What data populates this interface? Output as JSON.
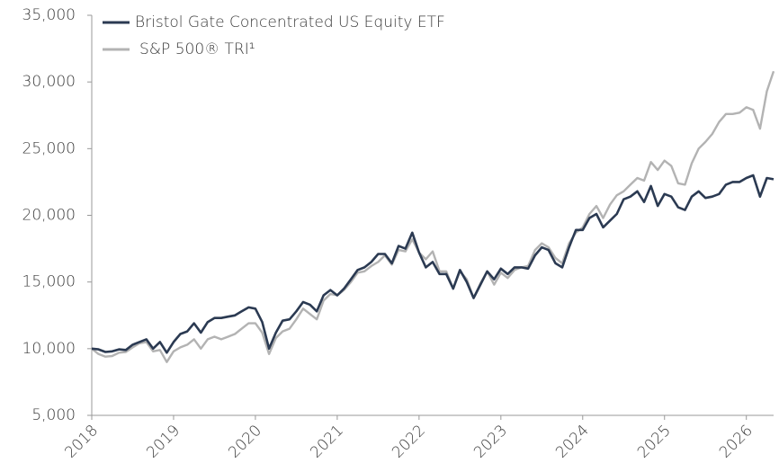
{
  "chart_data": {
    "type": "line",
    "x": [
      2018,
      2018.083,
      2018.167,
      2018.25,
      2018.333,
      2018.417,
      2018.5,
      2018.583,
      2018.667,
      2018.75,
      2018.833,
      2018.917,
      2019,
      2019.083,
      2019.167,
      2019.25,
      2019.333,
      2019.417,
      2019.5,
      2019.583,
      2019.667,
      2019.75,
      2019.833,
      2019.917,
      2020,
      2020.083,
      2020.167,
      2020.25,
      2020.333,
      2020.417,
      2020.5,
      2020.583,
      2020.667,
      2020.75,
      2020.833,
      2020.917,
      2021,
      2021.083,
      2021.167,
      2021.25,
      2021.333,
      2021.417,
      2021.5,
      2021.583,
      2021.667,
      2021.75,
      2021.833,
      2021.917,
      2022,
      2022.083,
      2022.167,
      2022.25,
      2022.333,
      2022.417,
      2022.5,
      2022.583,
      2022.667,
      2022.75,
      2022.833,
      2022.917,
      2023,
      2023.083,
      2023.167,
      2023.25,
      2023.333,
      2023.417,
      2023.5,
      2023.583,
      2023.667,
      2023.75,
      2023.833,
      2023.917,
      2024,
      2024.083,
      2024.167,
      2024.25,
      2024.333,
      2024.417,
      2024.5,
      2024.583,
      2024.667,
      2024.75,
      2024.833,
      2024.917,
      2025,
      2025.083,
      2025.167,
      2025.25,
      2025.333,
      2025.417,
      2025.5,
      2025.583,
      2025.667,
      2025.75,
      2025.833,
      2025.917,
      2026,
      2026.083,
      2026.167,
      2026.25,
      2026.333
    ],
    "series": [
      {
        "name": "Bristol Gate Concentrated US Equity ETF",
        "color": "#2b3a52",
        "values": [
          10000,
          9950,
          9750,
          9800,
          9950,
          9900,
          10300,
          10500,
          10700,
          10000,
          10500,
          9700,
          10500,
          11100,
          11300,
          11900,
          11200,
          12000,
          12300,
          12300,
          12400,
          12500,
          12800,
          13100,
          13000,
          12000,
          10000,
          11200,
          12100,
          12200,
          12800,
          13500,
          13300,
          12800,
          14000,
          14400,
          14000,
          14500,
          15200,
          15900,
          16100,
          16500,
          17100,
          17100,
          16400,
          17700,
          17500,
          18700,
          17200,
          16100,
          16500,
          15600,
          15600,
          14500,
          15900,
          15000,
          13800,
          14800,
          15800,
          15200,
          16000,
          15600,
          16100,
          16100,
          16000,
          17000,
          17600,
          17400,
          16400,
          16100,
          17600,
          18900,
          18900,
          19800,
          20100,
          19100,
          19600,
          20100,
          21200,
          21400,
          21800,
          21000,
          22200,
          20700,
          21600,
          21400,
          20600,
          20400,
          21400,
          21800,
          21300,
          21400,
          21600,
          22300,
          22500,
          22500,
          22800,
          23000,
          21400,
          22800,
          22700
        ]
      },
      {
        "name": "S&P 500® TRI¹",
        "color": "#b3b3b3",
        "values": [
          10000,
          9600,
          9400,
          9450,
          9700,
          9750,
          10100,
          10400,
          10500,
          9800,
          9900,
          9000,
          9800,
          10100,
          10300,
          10700,
          10000,
          10700,
          10900,
          10700,
          10900,
          11100,
          11500,
          11900,
          11900,
          11200,
          9600,
          10800,
          11300,
          11500,
          12200,
          13000,
          12600,
          12200,
          13600,
          14100,
          14000,
          14400,
          15000,
          15700,
          15800,
          16200,
          16500,
          17000,
          16300,
          17400,
          17300,
          18200,
          17200,
          16700,
          17300,
          15800,
          15800,
          14500,
          15800,
          15200,
          13800,
          14900,
          15800,
          14800,
          15700,
          15300,
          15900,
          16100,
          16200,
          17400,
          17900,
          17600,
          16800,
          16400,
          17900,
          18700,
          19100,
          20100,
          20700,
          19800,
          20800,
          21500,
          21800,
          22300,
          22800,
          22600,
          24000,
          23400,
          24100,
          23700,
          22400,
          22300,
          23900,
          25000,
          25500,
          26100,
          27000,
          27600,
          27600,
          27700,
          28100,
          27900,
          26500,
          29300,
          30800
        ]
      }
    ],
    "xlim": [
      2018,
      2026.333
    ],
    "xticks": [
      2018,
      2019,
      2020,
      2021,
      2022,
      2023,
      2024,
      2025,
      2026
    ],
    "ylim": [
      5000,
      35000
    ],
    "yticks": [
      {
        "value": 5000,
        "label": "5,000"
      },
      {
        "value": 10000,
        "label": "10,000"
      },
      {
        "value": 15000,
        "label": "15,000"
      },
      {
        "value": 20000,
        "label": "20,000"
      },
      {
        "value": 25000,
        "label": "25,000"
      },
      {
        "value": 30000,
        "label": "30,000"
      },
      {
        "value": 35000,
        "label": "35,000"
      }
    ],
    "legend": "upper left",
    "grid": false
  }
}
